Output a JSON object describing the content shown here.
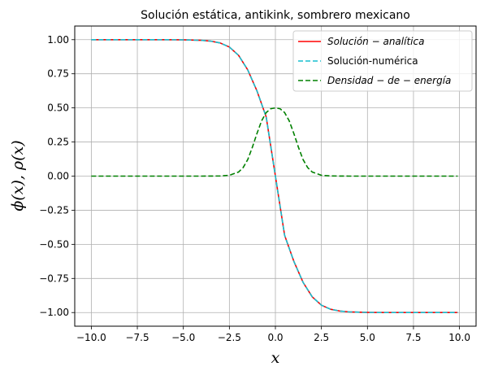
{
  "chart_data": {
    "type": "line",
    "title": "Solución estática, antikink, sombrero mexicano",
    "xlabel": "x",
    "ylabel": "ϕ(x), ρ(x)",
    "xlim": [
      -10.9,
      10.9
    ],
    "ylim": [
      -1.1,
      1.1
    ],
    "xticks": [
      -10.0,
      -7.5,
      -5.0,
      -2.5,
      0.0,
      2.5,
      5.0,
      7.5,
      10.0
    ],
    "xtick_labels": [
      "−10.0",
      "−7.5",
      "−5.0",
      "−2.5",
      "0.0",
      "2.5",
      "5.0",
      "7.5",
      "10.0"
    ],
    "yticks": [
      1.0,
      0.75,
      0.5,
      0.25,
      0.0,
      -0.25,
      -0.5,
      -0.75,
      -1.0
    ],
    "ytick_labels": [
      "1.00",
      "0.75",
      "0.50",
      "0.25",
      "0.00",
      "−0.25",
      "−0.50",
      "−0.75",
      "−1.00"
    ],
    "grid": true,
    "legend_position": "upper-right",
    "series": [
      {
        "name": "Solución − analítica",
        "legend_math": true,
        "color": "#ff0000",
        "style": "solid",
        "x": [
          -10.0,
          -8.0,
          -6.0,
          -5.0,
          -4.0,
          -3.5,
          -3.0,
          -2.5,
          -2.0,
          -1.5,
          -1.0,
          -0.5,
          0.0,
          0.5,
          1.0,
          1.5,
          2.0,
          2.5,
          3.0,
          3.5,
          4.0,
          5.0,
          6.0,
          8.0,
          9.9
        ],
        "y": [
          1.0,
          1.0,
          1.0,
          0.999,
          0.995,
          0.989,
          0.976,
          0.946,
          0.885,
          0.778,
          0.624,
          0.434,
          0.0,
          -0.434,
          -0.624,
          -0.778,
          -0.885,
          -0.946,
          -0.976,
          -0.989,
          -0.995,
          -0.999,
          -1.0,
          -1.0,
          -1.0
        ]
      },
      {
        "name": "Solución-numérica",
        "legend_math": false,
        "color": "#17becf",
        "style": "dashed",
        "x": [
          -10.0,
          -8.0,
          -6.0,
          -5.0,
          -4.0,
          -3.5,
          -3.0,
          -2.5,
          -2.0,
          -1.5,
          -1.0,
          -0.5,
          0.0,
          0.5,
          1.0,
          1.5,
          2.0,
          2.5,
          3.0,
          3.5,
          4.0,
          5.0,
          6.0,
          8.0,
          9.9
        ],
        "y": [
          1.0,
          1.0,
          1.0,
          0.999,
          0.995,
          0.989,
          0.976,
          0.946,
          0.885,
          0.778,
          0.624,
          0.434,
          0.0,
          -0.434,
          -0.624,
          -0.778,
          -0.885,
          -0.946,
          -0.976,
          -0.989,
          -0.995,
          -0.999,
          -1.0,
          -1.0,
          -1.0
        ]
      },
      {
        "name": "Densidad − de − energía",
        "legend_math": true,
        "color": "#008000",
        "style": "dashed",
        "x": [
          -10.0,
          -8.0,
          -6.0,
          -4.0,
          -3.0,
          -2.5,
          -2.0,
          -1.75,
          -1.5,
          -1.25,
          -1.0,
          -0.75,
          -0.5,
          -0.25,
          0.0,
          0.25,
          0.5,
          0.75,
          1.0,
          1.25,
          1.5,
          1.75,
          2.0,
          2.5,
          3.0,
          4.0,
          6.0,
          8.0,
          9.9
        ],
        "y": [
          0.0,
          0.0,
          0.0,
          0.0,
          0.001,
          0.006,
          0.03,
          0.063,
          0.122,
          0.212,
          0.313,
          0.405,
          0.466,
          0.494,
          0.5,
          0.494,
          0.466,
          0.405,
          0.313,
          0.212,
          0.122,
          0.063,
          0.03,
          0.006,
          0.001,
          0.0,
          0.0,
          0.0,
          0.0
        ]
      }
    ]
  }
}
